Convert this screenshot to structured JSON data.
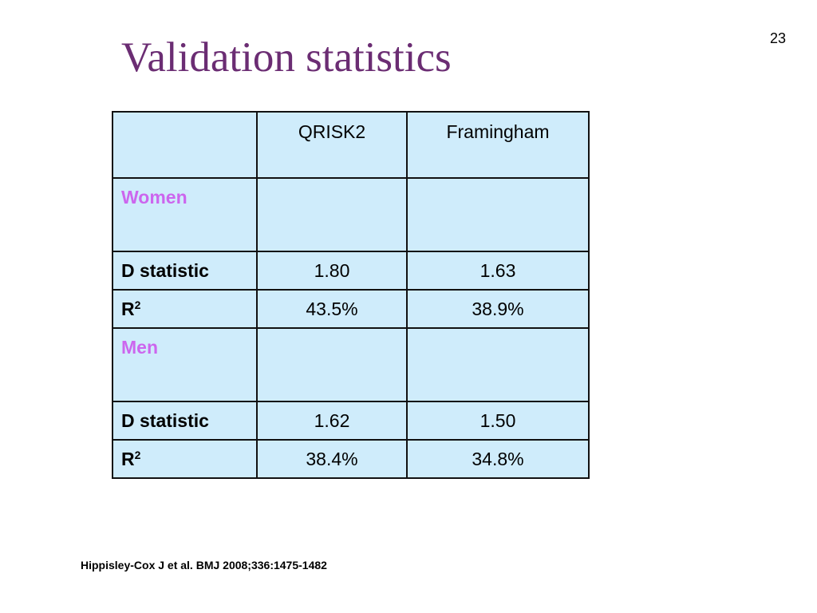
{
  "slide": {
    "page_number": "23",
    "title": "Validation statistics",
    "citation": "Hippisley-Cox J et al. BMJ 2008;336:1475-1482"
  },
  "table": {
    "headers": [
      "",
      "QRISK2",
      "Framingham"
    ],
    "sections": [
      {
        "label": "Women",
        "rows": [
          {
            "label": "D statistic",
            "qrisk2": "1.80",
            "framingham": "1.63"
          },
          {
            "label_base": "R",
            "label_sup": "2",
            "qrisk2": "43.5%",
            "framingham": "38.9%"
          }
        ]
      },
      {
        "label": "Men",
        "rows": [
          {
            "label": "D statistic",
            "qrisk2": "1.62",
            "framingham": "1.50"
          },
          {
            "label_base": "R",
            "label_sup": "2",
            "qrisk2": "38.4%",
            "framingham": "34.8%"
          }
        ]
      }
    ]
  },
  "colors": {
    "title": "#6b2d73",
    "section_label": "#cc66ee",
    "cell_background": "#cfecfb"
  }
}
